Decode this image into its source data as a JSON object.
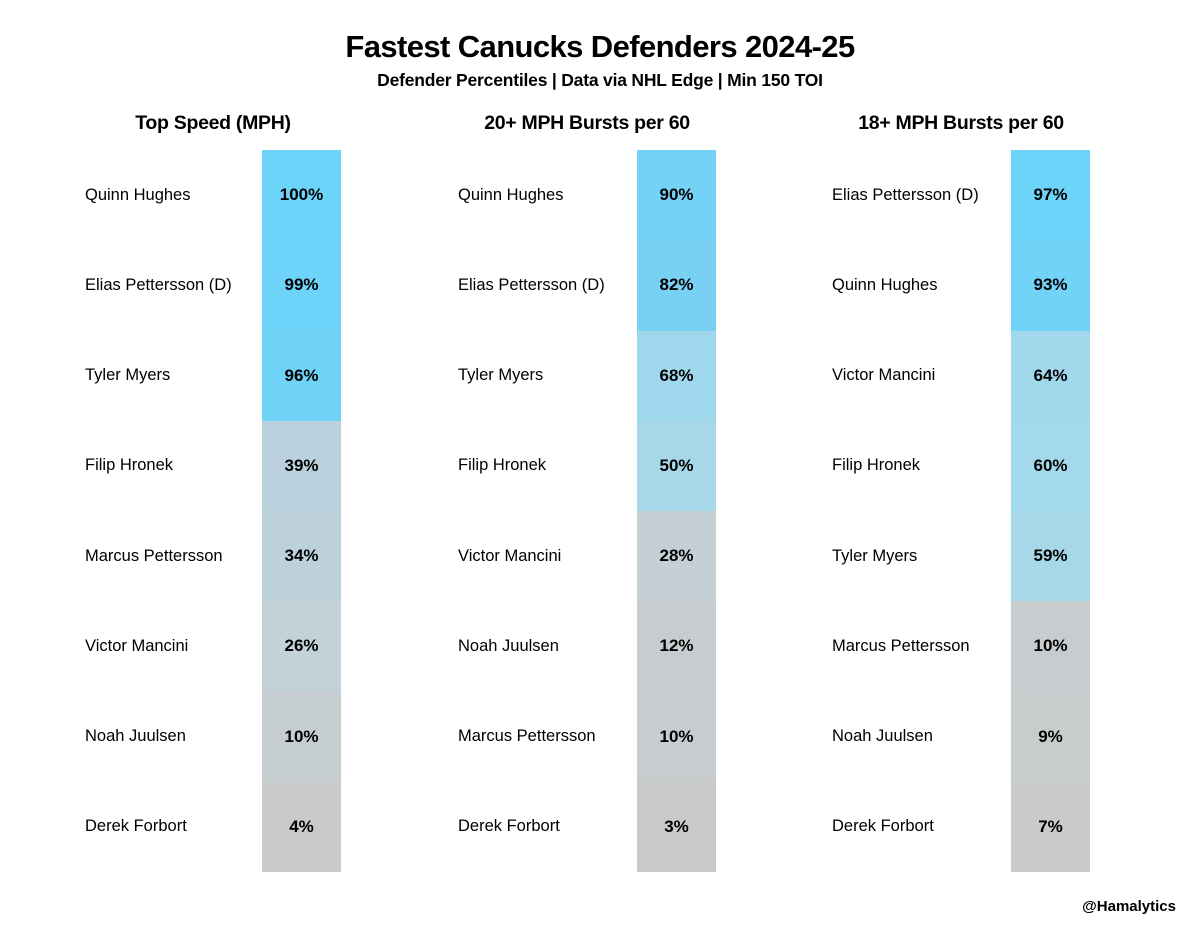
{
  "header": {
    "title": "Fastest Canucks Defenders 2024-25",
    "subtitle": "Defender Percentiles | Data via NHL Edge | Min 150 TOI"
  },
  "credit": "@Hamalytics",
  "colors": {
    "background": "#FFFFFF",
    "text": "#000000",
    "scale_high": "#6FD3F8",
    "scale_mid": "#A5D8EB",
    "scale_low": "#C9CAC8"
  },
  "chart_data": [
    {
      "type": "table",
      "title": "Top Speed (MPH)",
      "value_type": "percentile",
      "categories": [
        "Quinn Hughes",
        "Elias Pettersson (D)",
        "Tyler Myers",
        "Filip Hronek",
        "Marcus Pettersson",
        "Victor Mancini",
        "Noah Juulsen",
        "Derek Forbort"
      ],
      "values": [
        100,
        99,
        96,
        39,
        34,
        26,
        10,
        4
      ],
      "labels": [
        "100%",
        "99%",
        "96%",
        "39%",
        "34%",
        "26%",
        "10%",
        "4%"
      ],
      "cell_colors": [
        "#6CD3F9",
        "#6DD3F9",
        "#6FD3F8",
        "#BAD0DC",
        "#BDD1DB",
        "#C3D2D9",
        "#C7CED1",
        "#C9CBC9"
      ]
    },
    {
      "type": "table",
      "title": "20+ MPH Bursts per 60",
      "value_type": "percentile",
      "categories": [
        "Quinn Hughes",
        "Elias Pettersson (D)",
        "Tyler Myers",
        "Filip Hronek",
        "Victor Mancini",
        "Noah Juulsen",
        "Marcus Pettersson",
        "Derek Forbort"
      ],
      "values": [
        90,
        82,
        68,
        50,
        28,
        12,
        10,
        3
      ],
      "labels": [
        "90%",
        "82%",
        "68%",
        "50%",
        "28%",
        "12%",
        "10%",
        "3%"
      ],
      "cell_colors": [
        "#73D2F6",
        "#78D0F3",
        "#9FD8ED",
        "#A6D8EA",
        "#C4D0D6",
        "#C7CDCF",
        "#C8CCCE",
        "#C9CAC8"
      ]
    },
    {
      "type": "table",
      "title": "18+ MPH Bursts per 60",
      "value_type": "percentile",
      "categories": [
        "Elias Pettersson (D)",
        "Quinn Hughes",
        "Victor Mancini",
        "Filip Hronek",
        "Tyler Myers",
        "Marcus Pettersson",
        "Noah Juulsen",
        "Derek Forbort"
      ],
      "values": [
        97,
        93,
        64,
        60,
        59,
        10,
        9,
        7
      ],
      "labels": [
        "97%",
        "93%",
        "64%",
        "60%",
        "59%",
        "10%",
        "9%",
        "7%"
      ],
      "cell_colors": [
        "#6ED3F9",
        "#70D3F7",
        "#A2D8EC",
        "#A4D8EB",
        "#A6D8EA",
        "#C8CCCE",
        "#C8CCCD",
        "#C9CBCA"
      ]
    }
  ]
}
